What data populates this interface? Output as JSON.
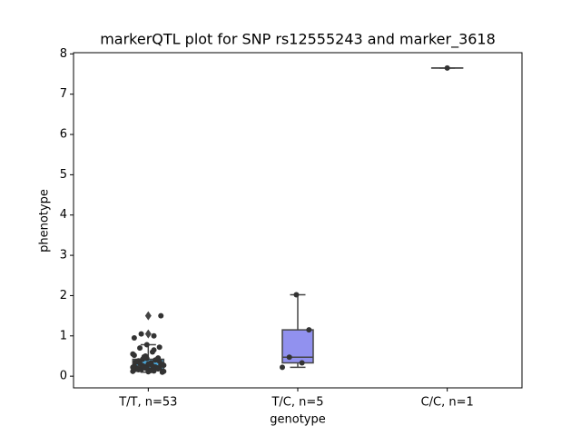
{
  "chart_data": {
    "type": "box",
    "title": "markerQTL plot for SNP rs12555243 and marker_3618",
    "x_label": "genotype",
    "y_label": "phenotype",
    "categories": [
      "T/T, n=53",
      "T/C, n=5",
      "C/C, n=1"
    ],
    "boxes": [
      {
        "whislo": 0.1,
        "q1": 0.17,
        "med": 0.25,
        "q3": 0.42,
        "whishi": 0.78,
        "fliers": [
          1.05,
          1.5
        ],
        "color": "#4aa6d8"
      },
      {
        "whislo": 0.22,
        "q1": 0.33,
        "med": 0.47,
        "q3": 1.15,
        "whishi": 2.02,
        "fliers": [],
        "color": "#9191ef"
      },
      {
        "whislo": 7.65,
        "q1": 7.65,
        "med": 7.65,
        "q3": 7.65,
        "whishi": 7.65,
        "fliers": [],
        "color": "#e0a060"
      }
    ],
    "points": [
      [
        0.12,
        0.15,
        0.18,
        0.2,
        0.22,
        0.25,
        0.13,
        0.16,
        0.28,
        0.3,
        0.35,
        0.4,
        0.42,
        0.1,
        0.14,
        0.19,
        0.21,
        0.24,
        0.27,
        0.33,
        0.38,
        0.45,
        0.5,
        0.55,
        0.6,
        0.7,
        0.72,
        0.78,
        0.95,
        1.0,
        1.05,
        1.5,
        0.11,
        0.17,
        0.23,
        0.26,
        0.29,
        0.31,
        0.36,
        0.41,
        0.48,
        0.12,
        0.14,
        0.16,
        0.18,
        0.2,
        0.22,
        0.25,
        0.32,
        0.37,
        0.44,
        0.52,
        0.65
      ],
      [
        0.22,
        0.33,
        0.47,
        1.15,
        2.02
      ],
      [
        7.65
      ]
    ],
    "point_color": "#333333",
    "ylim": [
      -0.29,
      8.03
    ],
    "yticks": [
      0,
      1,
      2,
      3,
      4,
      5,
      6,
      7,
      8
    ]
  }
}
